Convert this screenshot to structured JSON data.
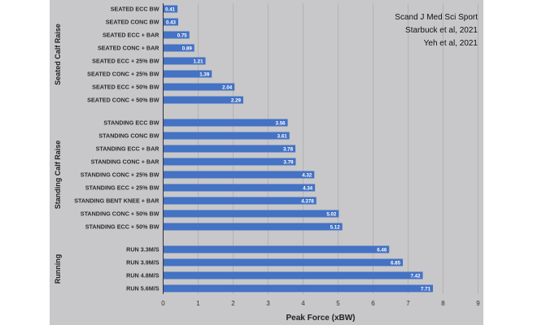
{
  "chart_data": {
    "type": "bar",
    "orientation": "horizontal",
    "bar_color": "#4472c4",
    "background_color": "#c8c8ca",
    "xlabel": "Peak Force (xBW)",
    "xlim": [
      0,
      9
    ],
    "xticks": [
      "0",
      "1",
      "2",
      "3",
      "4",
      "5",
      "6",
      "7",
      "8",
      "9"
    ],
    "gridlines": true,
    "annotation": [
      "Scand J Med Sci Sport",
      "Starbuck et al, 2021",
      "Yeh et al, 2021"
    ],
    "groups": [
      {
        "name": "Seated Calf Raise",
        "categories": [
          "SEATED ECC BW",
          "SEATED CONC BW",
          "SEATED ECC + BAR",
          "SEATED CONC + BAR",
          "SEATED ECC + 25% BW",
          "SEATED CONC + 25% BW",
          "SEATED ECC + 50% BW",
          "SEATED CONC + 50% BW"
        ],
        "values": [
          0.41,
          0.43,
          0.75,
          0.89,
          1.21,
          1.39,
          2.04,
          2.29
        ],
        "labels": [
          "0.41",
          "0.43",
          "0.75",
          "0.89",
          "1.21",
          "1.39",
          "2.04",
          "2.29"
        ]
      },
      {
        "name": "Standing Calf Raise",
        "categories": [
          "STANDING ECC BW",
          "STANDING CONC BW",
          "STANDING ECC + BAR",
          "STANDING CONC + BAR",
          "STANDING CONC + 25% BW",
          "STANDING ECC + 25% BW",
          "STANDING BENT KNEE + BAR",
          "STANDING CONC + 50% BW",
          "STANDING ECC + 50% BW"
        ],
        "values": [
          3.56,
          3.61,
          3.78,
          3.79,
          4.32,
          4.34,
          4.378,
          5.02,
          5.12
        ],
        "labels": [
          "3.56",
          "3.61",
          "3.78",
          "3.79",
          "4.32",
          "4.34",
          "4.378",
          "5.02",
          "5.12"
        ]
      },
      {
        "name": "Running",
        "categories": [
          "RUN 3.3M/S",
          "RUN 3.9M/S",
          "RUN 4.8M/S",
          "RUN 5.6M/S"
        ],
        "values": [
          6.46,
          6.85,
          7.42,
          7.71
        ],
        "labels": [
          "6.46",
          "6.85",
          "7.42",
          "7.71"
        ]
      }
    ]
  }
}
